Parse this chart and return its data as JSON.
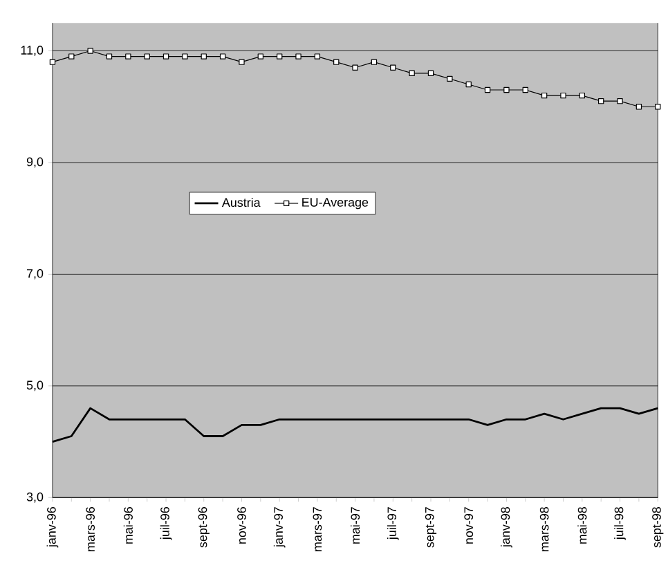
{
  "chart_data": {
    "type": "line",
    "categories": [
      "janv-96",
      null,
      "mars-96",
      null,
      "mai-96",
      null,
      "juil-96",
      null,
      "sept-96",
      null,
      "nov-96",
      null,
      "janv-97",
      null,
      "mars-97",
      null,
      "mai-97",
      null,
      "juil-97",
      null,
      "sept-97",
      null,
      "nov-97",
      null,
      "janv-98",
      null,
      "mars-98",
      null,
      "mai-98",
      null,
      "juil-98",
      null,
      "sept-98"
    ],
    "series": [
      {
        "name": "Austria",
        "color": "#000000",
        "marker": "none",
        "values": [
          4.0,
          4.1,
          4.6,
          4.4,
          4.4,
          4.4,
          4.4,
          4.4,
          4.1,
          4.1,
          4.3,
          4.3,
          4.4,
          4.4,
          4.4,
          4.4,
          4.4,
          4.4,
          4.4,
          4.4,
          4.4,
          4.4,
          4.4,
          4.3,
          4.4,
          4.4,
          4.5,
          4.4,
          4.5,
          4.6,
          4.6,
          4.5,
          4.6
        ]
      },
      {
        "name": "EU-Average",
        "color": "#000000",
        "marker": "square",
        "values": [
          10.8,
          10.9,
          11.0,
          10.9,
          10.9,
          10.9,
          10.9,
          10.9,
          10.9,
          10.9,
          10.8,
          10.9,
          10.9,
          10.9,
          10.9,
          10.8,
          10.7,
          10.8,
          10.7,
          10.6,
          10.6,
          10.5,
          10.4,
          10.3,
          10.3,
          10.3,
          10.2,
          10.2,
          10.2,
          10.1,
          10.1,
          10.0,
          10.0
        ]
      }
    ],
    "ylim": [
      3,
      11.5
    ],
    "yticks": [
      {
        "value": 3,
        "label": "3,0"
      },
      {
        "value": 5,
        "label": "5,0"
      },
      {
        "value": 7,
        "label": "7,0"
      },
      {
        "value": 9,
        "label": "9,0"
      },
      {
        "value": 11,
        "label": "11,0"
      }
    ],
    "grid": "y",
    "legend": "center",
    "line_style": "solid"
  }
}
